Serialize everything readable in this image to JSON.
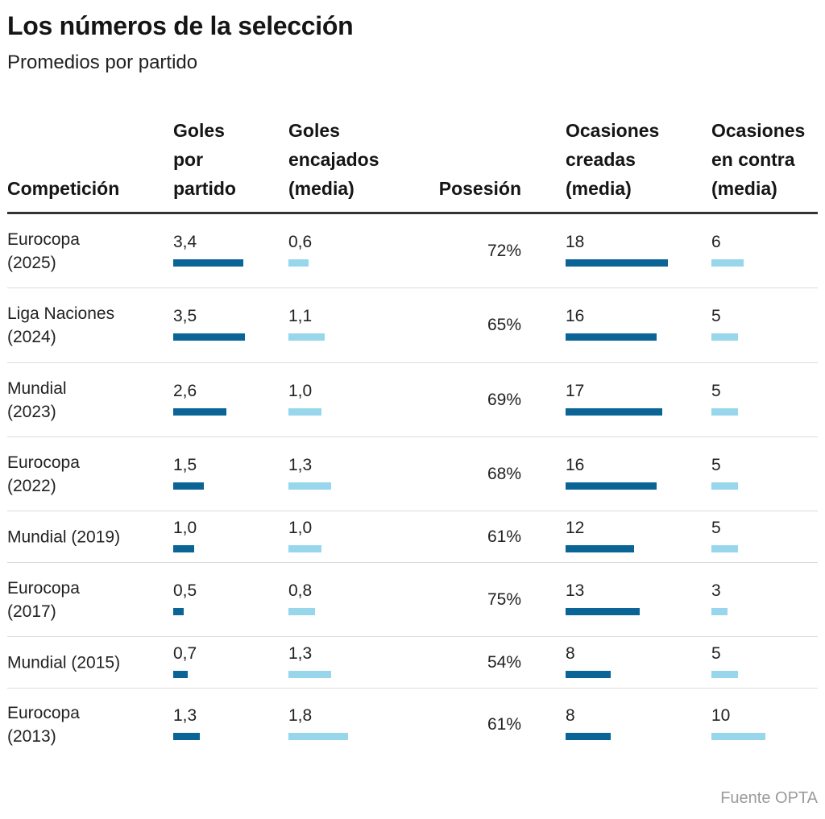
{
  "title": "Los números de la selección",
  "subtitle": "Promedios por partido",
  "source": "Fuente OPTA",
  "colors": {
    "dark_bar": "#0b6496",
    "light_bar": "#98d6ec",
    "rule": "#333333"
  },
  "chart_data": {
    "type": "table",
    "columns": [
      {
        "key": "competicion",
        "label_lines": [
          "Competición"
        ]
      },
      {
        "key": "goles",
        "label_lines": [
          "Goles",
          "por",
          "partido"
        ],
        "bar": "dark"
      },
      {
        "key": "encajados",
        "label_lines": [
          "Goles",
          "encajados",
          "(media)"
        ],
        "bar": "light"
      },
      {
        "key": "posesion",
        "label_lines": [
          "Posesión"
        ]
      },
      {
        "key": "creadas",
        "label_lines": [
          "Ocasiones",
          "creadas",
          "(media)"
        ],
        "bar": "dark"
      },
      {
        "key": "contra",
        "label_lines": [
          "Ocasiones",
          "en contra",
          "(media)"
        ],
        "bar": "light"
      }
    ],
    "rows": [
      {
        "competicion": [
          "Eurocopa",
          "(2025)"
        ],
        "goles": "3,4",
        "encajados": "0,6",
        "posesion": "72%",
        "creadas": "18",
        "contra": "6"
      },
      {
        "competicion": [
          "Liga Naciones",
          "(2024)"
        ],
        "goles": "3,5",
        "encajados": "1,1",
        "posesion": "65%",
        "creadas": "16",
        "contra": "5"
      },
      {
        "competicion": [
          "Mundial",
          "(2023)"
        ],
        "goles": "2,6",
        "encajados": "1,0",
        "posesion": "69%",
        "creadas": "17",
        "contra": "5"
      },
      {
        "competicion": [
          "Eurocopa",
          "(2022)"
        ],
        "goles": "1,5",
        "encajados": "1,3",
        "posesion": "68%",
        "creadas": "16",
        "contra": "5"
      },
      {
        "competicion": [
          "Mundial (2019)"
        ],
        "goles": "1,0",
        "encajados": "1,0",
        "posesion": "61%",
        "creadas": "12",
        "contra": "5"
      },
      {
        "competicion": [
          "Eurocopa",
          "(2017)"
        ],
        "goles": "0,5",
        "encajados": "0,8",
        "posesion": "75%",
        "creadas": "13",
        "contra": "3"
      },
      {
        "competicion": [
          "Mundial (2015)"
        ],
        "goles": "0,7",
        "encajados": "1,3",
        "posesion": "54%",
        "creadas": "8",
        "contra": "5"
      },
      {
        "competicion": [
          "Eurocopa",
          "(2013)"
        ],
        "goles": "1,3",
        "encajados": "1,8",
        "posesion": "61%",
        "creadas": "8",
        "contra": "10"
      }
    ]
  }
}
